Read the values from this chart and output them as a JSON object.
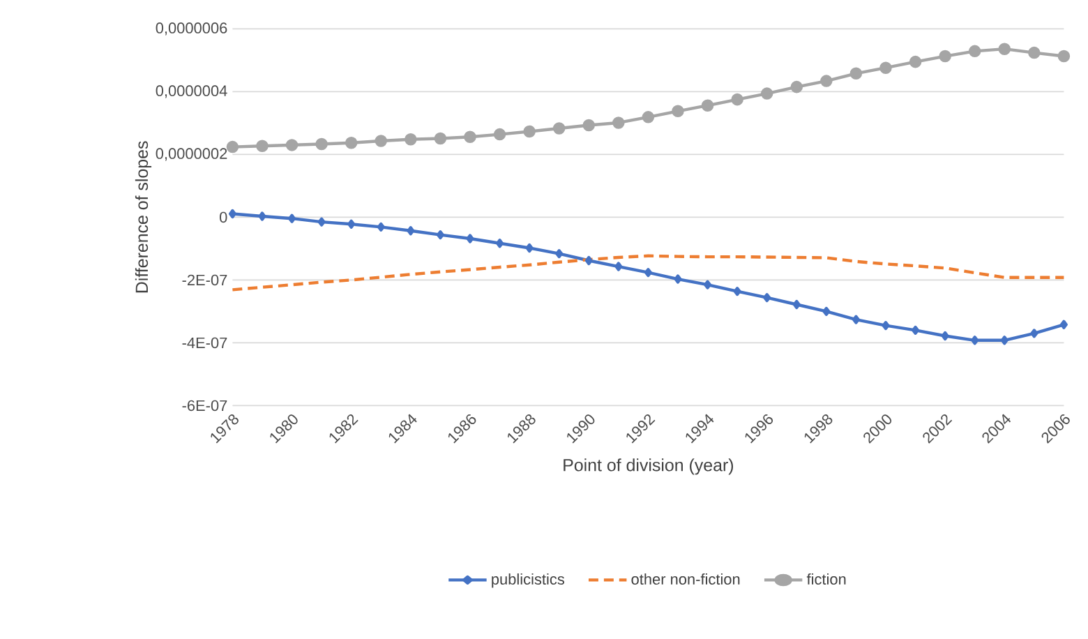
{
  "chart_data": {
    "type": "line",
    "xlabel": "Point of division (year)",
    "ylabel": "Difference of slopes",
    "x": [
      1978,
      1979,
      1980,
      1981,
      1982,
      1983,
      1984,
      1985,
      1986,
      1987,
      1988,
      1989,
      1990,
      1991,
      1992,
      1993,
      1994,
      1995,
      1996,
      1997,
      1998,
      1999,
      2000,
      2001,
      2002,
      2003,
      2004,
      2005,
      2006
    ],
    "series": [
      {
        "name": "publicistics",
        "color": "#4472c4",
        "marker": "diamond",
        "line_style": "solid",
        "values": [
          1.1e-08,
          3e-09,
          -4e-09,
          -1.5e-08,
          -2.2e-08,
          -3.1e-08,
          -4.3e-08,
          -5.6e-08,
          -6.8e-08,
          -8.3e-08,
          -9.8e-08,
          -1.16e-07,
          -1.38e-07,
          -1.57e-07,
          -1.76e-07,
          -1.97e-07,
          -2.15e-07,
          -2.36e-07,
          -2.56e-07,
          -2.78e-07,
          -3e-07,
          -3.26e-07,
          -3.45e-07,
          -3.6e-07,
          -3.78e-07,
          -3.92e-07,
          -3.92e-07,
          -3.7e-07,
          -3.42e-07
        ]
      },
      {
        "name": "other non-fiction",
        "color": "#ed7d31",
        "marker": "none",
        "line_style": "dashed",
        "values": [
          -2.31e-07,
          -2.23e-07,
          -2.15e-07,
          -2.07e-07,
          -2e-07,
          -1.91e-07,
          -1.82e-07,
          -1.74e-07,
          -1.67e-07,
          -1.59e-07,
          -1.52e-07,
          -1.43e-07,
          -1.35e-07,
          -1.28e-07,
          -1.23e-07,
          -1.25e-07,
          -1.26e-07,
          -1.26e-07,
          -1.27e-07,
          -1.28e-07,
          -1.29e-07,
          -1.41e-07,
          -1.49e-07,
          -1.55e-07,
          -1.62e-07,
          -1.77e-07,
          -1.92e-07,
          -1.92e-07,
          -1.92e-07
        ]
      },
      {
        "name": "fiction",
        "color": "#a5a5a5",
        "marker": "circle",
        "line_style": "solid",
        "values": [
          2.24e-07,
          2.27e-07,
          2.3e-07,
          2.33e-07,
          2.37e-07,
          2.43e-07,
          2.48e-07,
          2.51e-07,
          2.56e-07,
          2.64e-07,
          2.73e-07,
          2.83e-07,
          2.93e-07,
          3.01e-07,
          3.19e-07,
          3.38e-07,
          3.56e-07,
          3.75e-07,
          3.94e-07,
          4.15e-07,
          4.34e-07,
          4.58e-07,
          4.76e-07,
          4.95e-07,
          5.13e-07,
          5.29e-07,
          5.36e-07,
          5.24e-07,
          5.13e-07
        ]
      }
    ],
    "xlim": [
      1978,
      2006
    ],
    "xticks": [
      1978,
      1980,
      1982,
      1984,
      1986,
      1988,
      1990,
      1992,
      1994,
      1996,
      1998,
      2000,
      2002,
      2004,
      2006
    ],
    "ylim": [
      -6e-07,
      6e-07
    ],
    "yticks": [
      {
        "value": -6e-07,
        "label": "-6E-07"
      },
      {
        "value": -4e-07,
        "label": "-4E-07"
      },
      {
        "value": -2e-07,
        "label": "-2E-07"
      },
      0,
      {
        "value": 2e-07,
        "label": "0,0000002"
      },
      {
        "value": 4e-07,
        "label": "0,0000004"
      },
      {
        "value": 6e-07,
        "label": "0,0000006"
      }
    ],
    "grid": "y",
    "legend": "bottom"
  }
}
